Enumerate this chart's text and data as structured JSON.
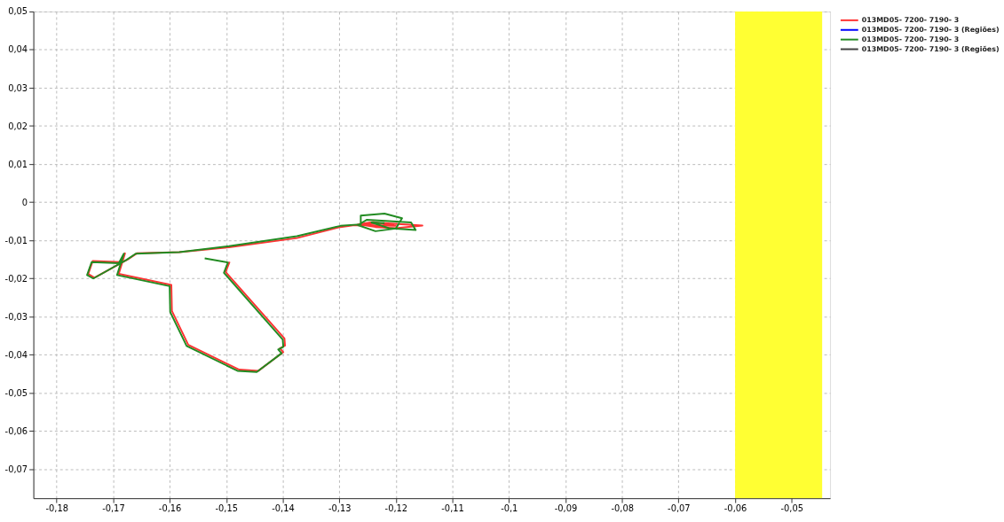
{
  "chart_data": {
    "type": "line",
    "xlim": [
      -0.1841,
      -0.0432
    ],
    "ylim": [
      -0.0776,
      0.05
    ],
    "xticks": [
      {
        "value": -0.18,
        "label": "-0,18"
      },
      {
        "value": -0.17,
        "label": "-0,17"
      },
      {
        "value": -0.16,
        "label": "-0,16"
      },
      {
        "value": -0.15,
        "label": "-0,15"
      },
      {
        "value": -0.14,
        "label": "-0,14"
      },
      {
        "value": -0.13,
        "label": "-0,13"
      },
      {
        "value": -0.12,
        "label": "-0,12"
      },
      {
        "value": -0.11,
        "label": "-0,11"
      },
      {
        "value": -0.1,
        "label": "-0,1"
      },
      {
        "value": -0.09,
        "label": "-0,09"
      },
      {
        "value": -0.08,
        "label": "-0,08"
      },
      {
        "value": -0.07,
        "label": "-0,07"
      },
      {
        "value": -0.06,
        "label": "-0,06"
      },
      {
        "value": -0.05,
        "label": "-0,05"
      }
    ],
    "yticks": [
      {
        "value": 0.05,
        "label": "0,05"
      },
      {
        "value": 0.04,
        "label": "0,04"
      },
      {
        "value": 0.03,
        "label": "0,03"
      },
      {
        "value": 0.02,
        "label": "0,02"
      },
      {
        "value": 0.01,
        "label": "0,01"
      },
      0,
      {
        "value": -0.01,
        "label": "-0,01"
      },
      {
        "value": -0.02,
        "label": "-0,02"
      },
      {
        "value": -0.03,
        "label": "-0,03"
      },
      {
        "value": -0.04,
        "label": "-0,04"
      },
      {
        "value": -0.05,
        "label": "-0,05"
      },
      {
        "value": -0.06,
        "label": "-0,06"
      },
      {
        "value": -0.07,
        "label": "-0,07"
      }
    ],
    "grid": true,
    "legend": "right",
    "marker": "none",
    "line_style": "solid",
    "bands": [
      {
        "axis": "x",
        "from": -0.06,
        "to": -0.0446,
        "color": "#ffff33"
      }
    ],
    "series": [
      {
        "name": "013MD05- 7200- 7190- 3",
        "color": "#ff3333",
        "x": [
          -0.1494,
          -0.1501,
          -0.1397,
          -0.1396,
          -0.1405,
          -0.1399,
          -0.1443,
          -0.1477,
          -0.1567,
          -0.1596,
          -0.1597,
          -0.169,
          -0.1679,
          -0.1687,
          -0.1736,
          -0.1744,
          -0.1733,
          -0.1674,
          -0.1658,
          -0.1583,
          -0.1495,
          -0.1375,
          -0.1298,
          -0.1262,
          -0.122,
          -0.1153,
          -0.12,
          -0.1236,
          -0.1267,
          -0.124,
          -0.12,
          -0.1275
        ],
        "values": [
          -0.0156,
          -0.0183,
          -0.0357,
          -0.0376,
          -0.0383,
          -0.0393,
          -0.0442,
          -0.0439,
          -0.0374,
          -0.0285,
          -0.0217,
          -0.0188,
          -0.0134,
          -0.0157,
          -0.0154,
          -0.0188,
          -0.0198,
          -0.015,
          -0.0134,
          -0.0131,
          -0.0118,
          -0.0094,
          -0.0065,
          -0.0058,
          -0.0055,
          -0.0061,
          -0.0068,
          -0.0065,
          -0.0058,
          -0.0052,
          -0.0062,
          -0.006
        ]
      },
      {
        "name": "013MD05- 7200- 7190- 3 (Regiões)",
        "color": "#0000ff"
      },
      {
        "name": "013MD05- 7200- 7190- 3",
        "color": "#228b22",
        "x": [
          -0.1538,
          -0.1497,
          -0.1504,
          -0.14,
          -0.1399,
          -0.1408,
          -0.1402,
          -0.1446,
          -0.148,
          -0.157,
          -0.1599,
          -0.16,
          -0.1693,
          -0.1681,
          -0.169,
          -0.1738,
          -0.1746,
          -0.1735,
          -0.1676,
          -0.166,
          -0.1583,
          -0.1495,
          -0.1375,
          -0.1298,
          -0.1262,
          -0.1262,
          -0.122,
          -0.1189,
          -0.12,
          -0.1236,
          -0.1267,
          -0.1251,
          -0.1173,
          -0.1165,
          -0.1212,
          -0.1243,
          -0.122
        ],
        "values": [
          -0.0147,
          -0.0158,
          -0.0185,
          -0.036,
          -0.0379,
          -0.0386,
          -0.0396,
          -0.0445,
          -0.0442,
          -0.0377,
          -0.0288,
          -0.022,
          -0.0191,
          -0.0135,
          -0.016,
          -0.0157,
          -0.0191,
          -0.02,
          -0.0151,
          -0.0135,
          -0.0131,
          -0.0115,
          -0.0089,
          -0.0062,
          -0.0058,
          -0.0035,
          -0.003,
          -0.0042,
          -0.0069,
          -0.0076,
          -0.006,
          -0.0046,
          -0.0053,
          -0.0073,
          -0.0068,
          -0.0053,
          -0.0055
        ]
      },
      {
        "name": "013MD05- 7200- 7190- 3 (Regiões)",
        "color": "#404040"
      }
    ]
  }
}
